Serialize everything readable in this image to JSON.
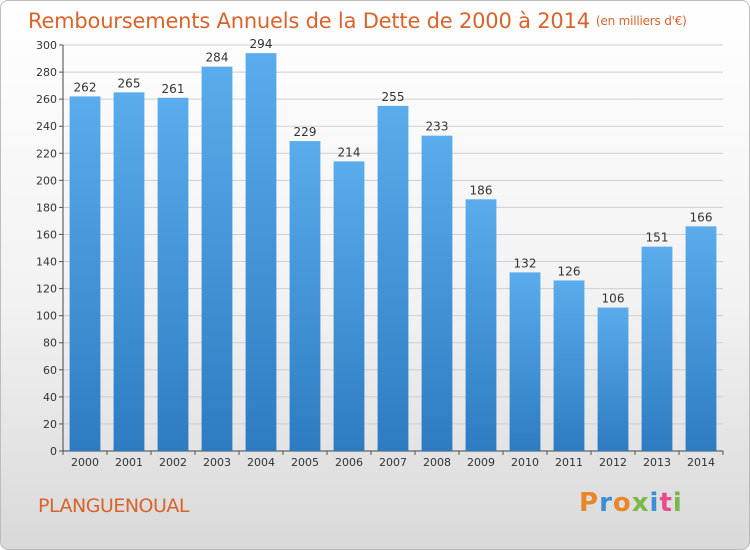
{
  "header": {
    "title": "Remboursements Annuels de la Dette de 2000 à 2014",
    "unit": "(en milliers d'€)"
  },
  "footer": {
    "commune": "PLANGUENOUAL",
    "logo_text": "Proxiti",
    "logo_colors": [
      "#e8862a",
      "#3a8fd8",
      "#e8862a",
      "#7ab648",
      "#3a8fd8",
      "#e84c8b",
      "#7ab648"
    ]
  },
  "chart_data": {
    "type": "bar",
    "title": "Remboursements Annuels de la Dette de 2000 à 2014",
    "xlabel": "",
    "ylabel": "",
    "categories": [
      "2000",
      "2001",
      "2002",
      "2003",
      "2004",
      "2005",
      "2006",
      "2007",
      "2008",
      "2009",
      "2010",
      "2011",
      "2012",
      "2013",
      "2014"
    ],
    "values": [
      262,
      265,
      261,
      284,
      294,
      229,
      214,
      255,
      233,
      186,
      132,
      126,
      106,
      151,
      166
    ],
    "ylim": [
      0,
      300
    ],
    "yticks": [
      0,
      20,
      40,
      60,
      80,
      100,
      120,
      140,
      160,
      180,
      200,
      220,
      240,
      260,
      280,
      300
    ],
    "grid": true,
    "bar_color_top": "#5aacec",
    "bar_color_bottom": "#2d7cc2"
  }
}
